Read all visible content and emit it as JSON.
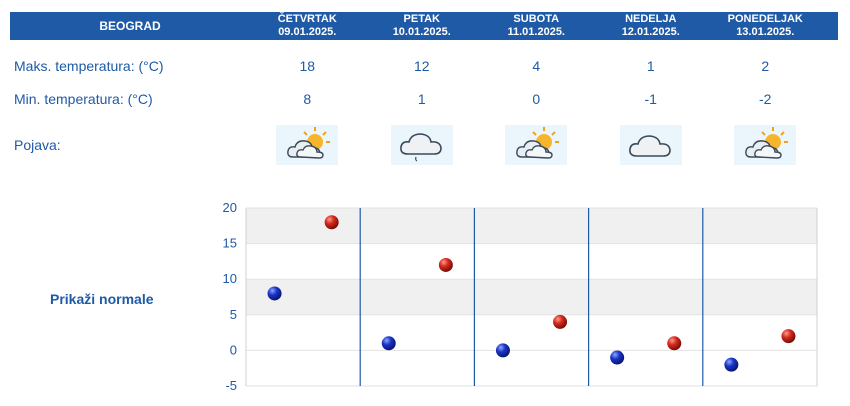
{
  "header": {
    "city": "BEOGRAD",
    "days": [
      {
        "name": "ČETVRTAK",
        "date": "09.01.2025."
      },
      {
        "name": "PETAK",
        "date": "10.01.2025."
      },
      {
        "name": "SUBOTA",
        "date": "11.01.2025."
      },
      {
        "name": "NEDELJA",
        "date": "12.01.2025."
      },
      {
        "name": "PONEDELJAK",
        "date": "13.01.2025."
      }
    ]
  },
  "rows": {
    "max_label": "Maks. temperatura: (°C)",
    "min_label": "Min. temperatura: (°C)",
    "weather_label": "Pojava:",
    "max_values": [
      "18",
      "12",
      "4",
      "1",
      "2"
    ],
    "min_values": [
      "8",
      "1",
      "0",
      "-1",
      "-2"
    ],
    "weather_icons": [
      "partly-cloudy-sun-icon",
      "cloud-drizzle-icon",
      "partly-cloudy-sun-icon",
      "cloud-icon",
      "partly-cloudy-sun-icon"
    ]
  },
  "normals_link": "Prikaži normale",
  "colors": {
    "header_bg": "#1f5aa6",
    "text": "#1f5aa6",
    "max_marker": "#d42a1e",
    "min_marker": "#1a35c8",
    "band": "#f0f0f0"
  },
  "chart_data": {
    "type": "scatter",
    "categories": [
      "09.01.2025.",
      "10.01.2025.",
      "11.01.2025.",
      "12.01.2025.",
      "13.01.2025."
    ],
    "series": [
      {
        "name": "",
        "role": "min",
        "values": [
          8,
          1,
          0,
          -1,
          -2
        ]
      },
      {
        "name": "",
        "role": "max",
        "values": [
          18,
          12,
          4,
          1,
          2
        ]
      }
    ],
    "ylim": [
      -5,
      20
    ],
    "yticks": [
      20,
      15,
      10,
      5,
      0,
      -5
    ],
    "grid": true
  }
}
